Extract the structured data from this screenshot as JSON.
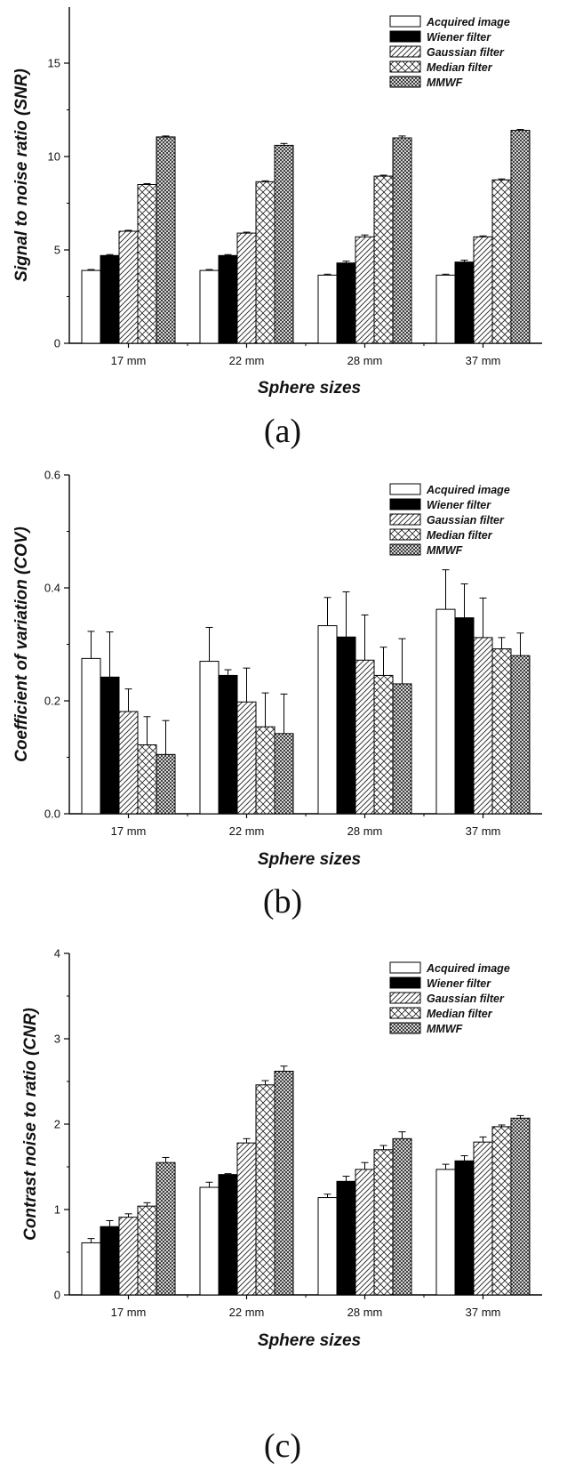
{
  "panel_labels": [
    "(a)",
    "(b)",
    "(c)"
  ],
  "series_styles": [
    {
      "fill": "#ffffff",
      "pattern": "none"
    },
    {
      "fill": "#000000",
      "pattern": "none"
    },
    {
      "fill": "#ffffff",
      "pattern": "diagonal"
    },
    {
      "fill": "#ffffff",
      "pattern": "crosshatch"
    },
    {
      "fill": "#ffffff",
      "pattern": "dense-crosshatch"
    }
  ],
  "chart_data": [
    {
      "type": "bar",
      "categories": [
        "17 mm",
        "22 mm",
        "28 mm",
        "37 mm"
      ],
      "xlabel": "Sphere sizes",
      "ylabel": "Signal to noise ratio (SNR)",
      "ylim": [
        0,
        18
      ],
      "yticks": [
        0,
        5,
        10,
        15
      ],
      "ytick_labels": [
        "0",
        "5",
        "10",
        "15"
      ],
      "legend_position": "top-right",
      "series": [
        {
          "name": "Acquired image",
          "values": [
            3.9,
            3.9,
            3.65,
            3.65
          ],
          "errors": [
            0.05,
            0.05,
            0.05,
            0.05
          ]
        },
        {
          "name": "Wiener filter",
          "values": [
            4.7,
            4.7,
            4.3,
            4.35
          ],
          "errors": [
            0.05,
            0.05,
            0.1,
            0.1
          ]
        },
        {
          "name": "Gaussian filter",
          "values": [
            6.0,
            5.9,
            5.7,
            5.7
          ],
          "errors": [
            0.05,
            0.05,
            0.1,
            0.05
          ]
        },
        {
          "name": "Median filter",
          "values": [
            8.5,
            8.65,
            8.95,
            8.75
          ],
          "errors": [
            0.05,
            0.05,
            0.05,
            0.05
          ]
        },
        {
          "name": "MMWF",
          "values": [
            11.05,
            10.6,
            11.0,
            11.4
          ],
          "errors": [
            0.05,
            0.1,
            0.1,
            0.05
          ]
        }
      ]
    },
    {
      "type": "bar",
      "categories": [
        "17 mm",
        "22 mm",
        "28 mm",
        "37 mm"
      ],
      "xlabel": "Sphere sizes",
      "ylabel": "Coefficient of variation (COV)",
      "ylim": [
        0,
        0.6
      ],
      "yticks": [
        0,
        0.2,
        0.4,
        0.6
      ],
      "ytick_labels": [
        "0.0",
        "0.2",
        "0.4",
        "0.6"
      ],
      "legend_position": "top-right",
      "series": [
        {
          "name": "Acquired image",
          "values": [
            0.275,
            0.27,
            0.333,
            0.362
          ],
          "errors": [
            0.048,
            0.06,
            0.05,
            0.07
          ]
        },
        {
          "name": "Wiener filter",
          "values": [
            0.242,
            0.245,
            0.313,
            0.347
          ],
          "errors": [
            0.08,
            0.01,
            0.08,
            0.06
          ]
        },
        {
          "name": "Gaussian filter",
          "values": [
            0.181,
            0.198,
            0.272,
            0.312
          ],
          "errors": [
            0.04,
            0.06,
            0.08,
            0.07
          ]
        },
        {
          "name": "Median filter",
          "values": [
            0.122,
            0.154,
            0.245,
            0.292
          ],
          "errors": [
            0.05,
            0.06,
            0.05,
            0.02
          ]
        },
        {
          "name": "MMWF",
          "values": [
            0.105,
            0.142,
            0.23,
            0.28
          ],
          "errors": [
            0.06,
            0.07,
            0.08,
            0.04
          ]
        }
      ]
    },
    {
      "type": "bar",
      "categories": [
        "17 mm",
        "22 mm",
        "28 mm",
        "37 mm"
      ],
      "xlabel": "Sphere sizes",
      "ylabel": "Contrast noise to ratio (CNR)",
      "ylim": [
        0,
        4
      ],
      "yticks": [
        0,
        1,
        2,
        3,
        4
      ],
      "ytick_labels": [
        "0",
        "1",
        "2",
        "3",
        "4"
      ],
      "legend_position": "top-right",
      "series": [
        {
          "name": "Acquired image",
          "values": [
            0.61,
            1.26,
            1.14,
            1.47
          ],
          "errors": [
            0.05,
            0.06,
            0.04,
            0.06
          ]
        },
        {
          "name": "Wiener filter",
          "values": [
            0.8,
            1.41,
            1.33,
            1.57
          ],
          "errors": [
            0.07,
            0.01,
            0.06,
            0.06
          ]
        },
        {
          "name": "Gaussian filter",
          "values": [
            0.91,
            1.78,
            1.47,
            1.79
          ],
          "errors": [
            0.04,
            0.05,
            0.08,
            0.06
          ]
        },
        {
          "name": "Median filter",
          "values": [
            1.04,
            2.46,
            1.7,
            1.97
          ],
          "errors": [
            0.04,
            0.05,
            0.05,
            0.02
          ]
        },
        {
          "name": "MMWF",
          "values": [
            1.55,
            2.62,
            1.83,
            2.07
          ],
          "errors": [
            0.06,
            0.06,
            0.08,
            0.03
          ]
        }
      ]
    }
  ]
}
